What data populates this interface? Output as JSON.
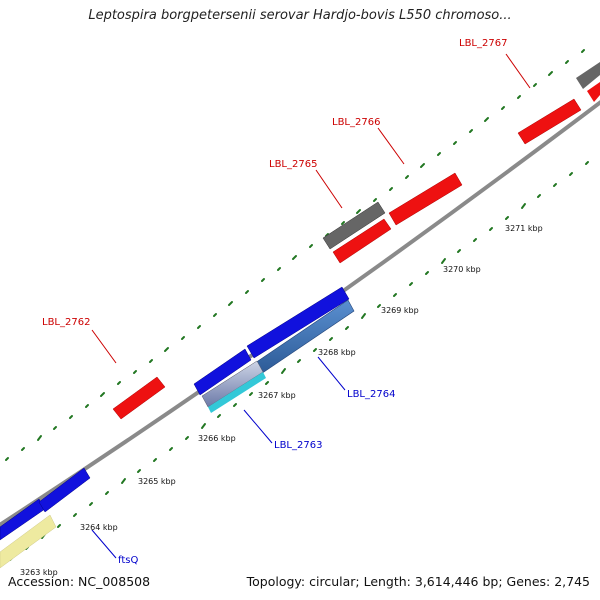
{
  "title": "Leptospira borgpetersenii serovar Hardjo-bovis L550 chromoso...",
  "footer": {
    "accession": "Accession: NC_008508",
    "summary": "Topology: circular; Length: 3,614,446 bp; Genes: 2,745"
  },
  "colors": {
    "forward_gene": "#ee1111",
    "reverse_gene": "#1111dd",
    "pseudo_gene": "#666666",
    "highlight_gene": "#4477bb",
    "ftsq_gene": "#eeeaa0",
    "cyan_gene": "#33c8d8",
    "backbone": "#8a8a8a",
    "tick": "#227722",
    "label_forward": "#cc0000",
    "label_reverse": "#0000cc"
  },
  "kbp_labels": [
    "3263 kbp",
    "3264 kbp",
    "3265 kbp",
    "3266 kbp",
    "3267 kbp",
    "3268 kbp",
    "3269 kbp",
    "3270 kbp",
    "3271 kbp"
  ],
  "gene_labels": {
    "lbl_2762": "LBL_2762",
    "lbl_2763": "LBL_2763",
    "lbl_2764": "LBL_2764",
    "lbl_2765": "LBL_2765",
    "lbl_2766": "LBL_2766",
    "lbl_2767": "LBL_2767",
    "ftsq": "ftsQ"
  }
}
